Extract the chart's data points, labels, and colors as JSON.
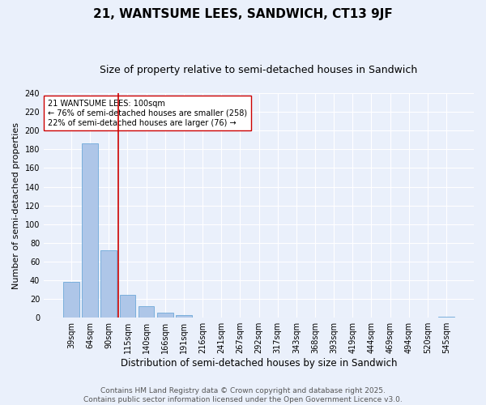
{
  "title": "21, WANTSUME LEES, SANDWICH, CT13 9JF",
  "subtitle": "Size of property relative to semi-detached houses in Sandwich",
  "xlabel": "Distribution of semi-detached houses by size in Sandwich",
  "ylabel": "Number of semi-detached properties",
  "bar_labels": [
    "39sqm",
    "64sqm",
    "90sqm",
    "115sqm",
    "140sqm",
    "166sqm",
    "191sqm",
    "216sqm",
    "241sqm",
    "267sqm",
    "292sqm",
    "317sqm",
    "343sqm",
    "368sqm",
    "393sqm",
    "419sqm",
    "444sqm",
    "469sqm",
    "494sqm",
    "520sqm",
    "545sqm"
  ],
  "bar_values": [
    38,
    186,
    72,
    24,
    12,
    5,
    3,
    0,
    0,
    0,
    0,
    0,
    0,
    0,
    0,
    0,
    0,
    0,
    0,
    0,
    1
  ],
  "bar_color": "#aec6e8",
  "bar_edge_color": "#5a9fd4",
  "ylim": [
    0,
    240
  ],
  "yticks": [
    0,
    20,
    40,
    60,
    80,
    100,
    120,
    140,
    160,
    180,
    200,
    220,
    240
  ],
  "vline_x_index": 2,
  "vline_color": "#cc0000",
  "annotation_title": "21 WANTSUME LEES: 100sqm",
  "annotation_line1": "← 76% of semi-detached houses are smaller (258)",
  "annotation_line2": "22% of semi-detached houses are larger (76) →",
  "annotation_box_color": "#ffffff",
  "annotation_box_edge": "#cc0000",
  "footer_line1": "Contains HM Land Registry data © Crown copyright and database right 2025.",
  "footer_line2": "Contains public sector information licensed under the Open Government Licence v3.0.",
  "bg_color": "#eaf0fb",
  "grid_color": "#ffffff",
  "title_fontsize": 11,
  "subtitle_fontsize": 9,
  "xlabel_fontsize": 8.5,
  "ylabel_fontsize": 8,
  "tick_fontsize": 7,
  "footer_fontsize": 6.5,
  "annot_fontsize": 7
}
